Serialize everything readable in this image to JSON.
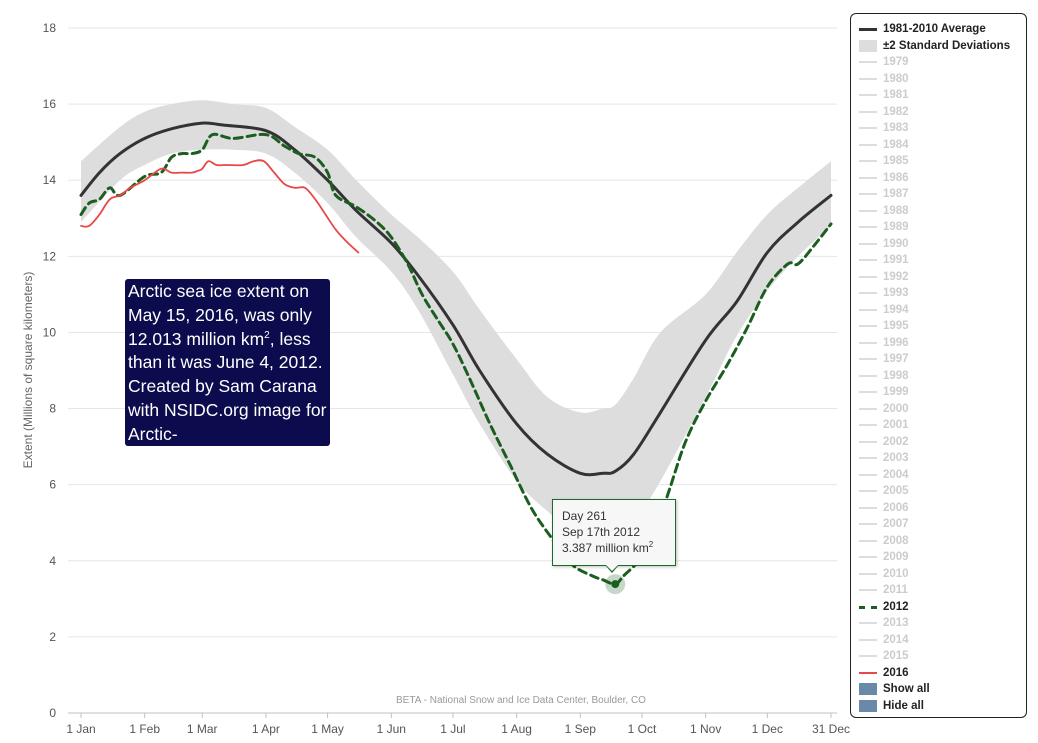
{
  "chart_data": {
    "type": "line",
    "ylabel": "Extent (Millions of square kilometers)",
    "ylim": [
      0,
      18
    ],
    "yticks": [
      "0",
      "2",
      "4",
      "6",
      "8",
      "10",
      "12",
      "14",
      "16",
      "18"
    ],
    "xlim": [
      1,
      366
    ],
    "xticks": [
      {
        "label": "1 Jan",
        "day": 1
      },
      {
        "label": "1 Feb",
        "day": 32
      },
      {
        "label": "1 Mar",
        "day": 60
      },
      {
        "label": "1 Apr",
        "day": 91
      },
      {
        "label": "1 May",
        "day": 121
      },
      {
        "label": "1 Jun",
        "day": 152
      },
      {
        "label": "1 Jul",
        "day": 182
      },
      {
        "label": "1 Aug",
        "day": 213
      },
      {
        "label": "1 Sep",
        "day": 244
      },
      {
        "label": "1 Oct",
        "day": 274
      },
      {
        "label": "1 Nov",
        "day": 305
      },
      {
        "label": "1 Dec",
        "day": 335
      },
      {
        "label": "31 Dec",
        "day": 366
      }
    ],
    "grid": true,
    "legend_position": "right",
    "series": [
      {
        "name": "1981-2010 Average",
        "color": "#333333",
        "style": "solid",
        "x": [
          1,
          10,
          20,
          32,
          45,
          60,
          70,
          91,
          105,
          121,
          135,
          152,
          165,
          182,
          195,
          213,
          228,
          244,
          255,
          261,
          270,
          283,
          305,
          320,
          335,
          350,
          366
        ],
        "y": [
          13.6,
          14.2,
          14.7,
          15.1,
          15.35,
          15.5,
          15.45,
          15.3,
          14.8,
          14.0,
          13.2,
          12.35,
          11.5,
          10.2,
          9.0,
          7.6,
          6.8,
          6.3,
          6.3,
          6.35,
          6.8,
          7.9,
          9.8,
          10.8,
          12.1,
          12.9,
          13.6
        ]
      },
      {
        "name": "±2 Standard Deviations",
        "color": "#dddddd",
        "style": "band",
        "x": [
          1,
          20,
          32,
          45,
          60,
          75,
          91,
          105,
          121,
          135,
          152,
          165,
          182,
          195,
          213,
          228,
          244,
          255,
          261,
          270,
          283,
          305,
          320,
          335,
          350,
          366
        ],
        "upper": [
          14.5,
          15.4,
          15.8,
          16.0,
          16.1,
          16.0,
          15.9,
          15.4,
          14.8,
          14.0,
          13.1,
          12.5,
          11.6,
          10.6,
          9.3,
          8.3,
          7.9,
          8.0,
          8.1,
          8.8,
          10.0,
          11.0,
          12.1,
          13.1,
          13.8,
          14.5
        ],
        "lower": [
          12.9,
          14.0,
          14.4,
          14.7,
          14.8,
          14.8,
          14.7,
          14.2,
          13.4,
          12.5,
          11.6,
          10.6,
          8.9,
          7.6,
          6.1,
          5.3,
          4.6,
          4.5,
          4.6,
          5.0,
          6.1,
          8.3,
          9.9,
          11.1,
          12.0,
          12.8
        ]
      },
      {
        "name": "2012",
        "color": "#1b5e20",
        "style": "dashed",
        "x": [
          1,
          5,
          10,
          15,
          20,
          32,
          40,
          45,
          50,
          55,
          60,
          65,
          75,
          91,
          100,
          107,
          115,
          121,
          125,
          135,
          145,
          152,
          160,
          167,
          175,
          182,
          190,
          200,
          210,
          220,
          230,
          240,
          250,
          255,
          261,
          265,
          275,
          285,
          295,
          305,
          315,
          325,
          335,
          345,
          350,
          358,
          366
        ],
        "y": [
          13.1,
          13.4,
          13.5,
          13.8,
          13.6,
          14.1,
          14.2,
          14.6,
          14.7,
          14.7,
          14.8,
          15.2,
          15.1,
          15.2,
          14.9,
          14.7,
          14.6,
          14.2,
          13.6,
          13.3,
          12.9,
          12.5,
          11.8,
          11.0,
          10.3,
          9.7,
          8.8,
          7.6,
          6.5,
          5.4,
          4.6,
          3.9,
          3.6,
          3.5,
          3.387,
          3.6,
          4.2,
          5.5,
          7.1,
          8.2,
          9.1,
          10.1,
          11.2,
          11.8,
          11.8,
          12.3,
          12.85
        ]
      },
      {
        "name": "2016",
        "color": "#e84848",
        "style": "solid",
        "x": [
          1,
          5,
          10,
          15,
          20,
          25,
          32,
          40,
          45,
          50,
          55,
          58,
          60,
          63,
          67,
          72,
          80,
          85,
          90,
          95,
          100,
          105,
          110,
          115,
          120,
          125,
          130,
          136
        ],
        "y": [
          12.8,
          12.8,
          13.1,
          13.5,
          13.6,
          13.8,
          14.0,
          14.3,
          14.2,
          14.2,
          14.2,
          14.25,
          14.3,
          14.5,
          14.4,
          14.4,
          14.4,
          14.5,
          14.5,
          14.2,
          13.9,
          13.8,
          13.8,
          13.5,
          13.1,
          12.7,
          12.4,
          12.1
        ]
      }
    ],
    "credit": "BETA - National Snow and Ice Data Center, Boulder, CO",
    "highlight_point": {
      "day": 261,
      "value": 3.387
    }
  },
  "tooltip": {
    "day": "Day 261",
    "date": "Sep 17th 2012",
    "value": "3.387 million km",
    "value_sup": "2"
  },
  "annotation": {
    "line1": "Arctic sea ice extent on",
    "line2": "May 15, 2016, was only",
    "line3a": "12.013 million km",
    "line3sup": "2",
    "line3b": ", less",
    "line4": "than it was June 4, 2012.",
    "line5": "Created by Sam Carana",
    "line6": "with NSIDC.org image for",
    "line7": "Arctic-news.blogspot.com"
  },
  "legend": {
    "average": "1981-2010 Average",
    "std": "±2 Standard Deviations",
    "years_a": [
      "1979",
      "1980",
      "1981",
      "1982",
      "1983",
      "1984",
      "1985",
      "1986",
      "1987",
      "1988",
      "1989",
      "1990",
      "1991",
      "1992",
      "1993",
      "1994",
      "1995",
      "1996",
      "1997",
      "1998",
      "1999",
      "2000",
      "2001",
      "2002",
      "2003",
      "2004",
      "2005",
      "2006",
      "2007",
      "2008",
      "2009",
      "2010",
      "2011"
    ],
    "y2012": "2012",
    "years_b": [
      "2013",
      "2014",
      "2015"
    ],
    "y2016": "2016",
    "show_all": "Show all",
    "hide_all": "Hide all"
  }
}
